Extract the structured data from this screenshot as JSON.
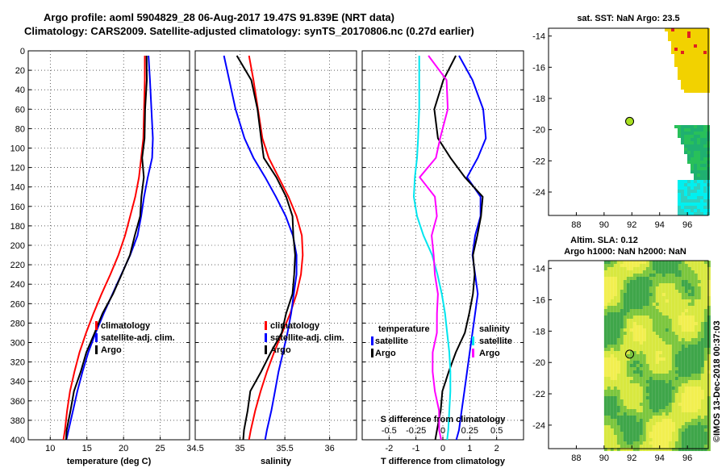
{
  "header": {
    "line1": "Argo profile: aoml 5904829_28 06-Aug-2017 19.47S 91.839E (NRT data)",
    "line2": "Climatology: CARS2009. Satellite-adjusted climatology: synTS_20170806.nc (0.27d earlier)"
  },
  "watermark": "©IMOS 13-Dec-2018 00:37:03",
  "colors": {
    "climatology": "#ff0000",
    "satellite": "#0000ff",
    "argo": "#000000",
    "magenta": "#ff00ff",
    "cyan": "#00e5ee"
  },
  "chart_data": [
    {
      "type": "line",
      "name": "temperature",
      "xlabel": "temperature (deg C)",
      "xlim": [
        7,
        29
      ],
      "ylim": [
        0,
        400
      ],
      "xticks": [
        10,
        15,
        20,
        25
      ],
      "yticks": [
        0,
        20,
        40,
        60,
        80,
        100,
        120,
        140,
        160,
        180,
        200,
        220,
        240,
        260,
        280,
        300,
        320,
        340,
        360,
        380,
        400
      ],
      "legend": [
        "climatology",
        "satellite-adj. clim.",
        "Argo"
      ],
      "series": [
        {
          "name": "climatology",
          "color": "#ff0000",
          "x": [
            22.9,
            22.9,
            22.8,
            22.7,
            22.4,
            22.1,
            21.6,
            20.9,
            20.2,
            19.3,
            18.2,
            17.0,
            15.9,
            14.9,
            14.0,
            13.3,
            12.7,
            12.3,
            12.0,
            11.8
          ],
          "depth": [
            5,
            30,
            60,
            90,
            110,
            130,
            150,
            170,
            190,
            210,
            230,
            250,
            270,
            290,
            310,
            330,
            350,
            370,
            390,
            400
          ]
        },
        {
          "name": "satellite-adj. clim.",
          "color": "#0000ff",
          "x": [
            23.4,
            23.6,
            23.8,
            24.0,
            23.9,
            23.3,
            22.8,
            22.4,
            21.9,
            20.9,
            19.7,
            18.5,
            17.3,
            16.2,
            15.2,
            14.4,
            13.7,
            13.1,
            12.5,
            12.2
          ],
          "depth": [
            5,
            30,
            60,
            90,
            110,
            130,
            150,
            170,
            190,
            210,
            230,
            250,
            270,
            290,
            310,
            330,
            350,
            370,
            390,
            400
          ]
        },
        {
          "name": "Argo",
          "color": "#000000",
          "x": [
            23.2,
            23.1,
            23.0,
            22.8,
            22.6,
            22.7,
            22.5,
            22.2,
            21.6,
            20.8,
            19.8,
            18.5,
            17.2,
            16.0,
            15.0,
            14.1,
            13.3,
            12.7,
            12.3,
            12.1
          ],
          "depth": [
            5,
            30,
            60,
            90,
            110,
            130,
            150,
            170,
            190,
            210,
            230,
            250,
            270,
            290,
            310,
            330,
            350,
            370,
            390,
            400
          ]
        }
      ]
    },
    {
      "type": "line",
      "name": "salinity",
      "xlabel": "salinity",
      "xlim": [
        34.5,
        36.3
      ],
      "ylim": [
        0,
        400
      ],
      "xticks": [
        34.5,
        35,
        35.5,
        36
      ],
      "legend": [
        "climatology",
        "satellite-adj. clim.",
        "Argo"
      ],
      "series": [
        {
          "name": "climatology",
          "color": "#ff0000",
          "x": [
            35.1,
            35.15,
            35.2,
            35.25,
            35.32,
            35.43,
            35.54,
            35.63,
            35.69,
            35.7,
            35.68,
            35.63,
            35.56,
            35.47,
            35.38,
            35.3,
            35.23,
            35.17,
            35.12,
            35.1
          ],
          "depth": [
            5,
            30,
            60,
            90,
            110,
            130,
            150,
            170,
            190,
            210,
            230,
            250,
            270,
            290,
            310,
            330,
            350,
            370,
            390,
            400
          ]
        },
        {
          "name": "satellite-adj. clim.",
          "color": "#0000ff",
          "x": [
            34.82,
            34.88,
            34.95,
            35.05,
            35.15,
            35.28,
            35.4,
            35.51,
            35.59,
            35.63,
            35.63,
            35.6,
            35.57,
            35.53,
            35.48,
            35.43,
            35.39,
            35.35,
            35.3,
            35.28
          ],
          "depth": [
            5,
            30,
            60,
            90,
            110,
            130,
            150,
            170,
            190,
            210,
            230,
            250,
            270,
            290,
            310,
            330,
            350,
            370,
            390,
            400
          ]
        },
        {
          "name": "Argo",
          "color": "#000000",
          "x": [
            34.97,
            35.12,
            35.2,
            35.23,
            35.27,
            35.4,
            35.52,
            35.58,
            35.6,
            35.61,
            35.61,
            35.58,
            35.52,
            35.46,
            35.35,
            35.23,
            35.12,
            35.08,
            35.05,
            35.03
          ],
          "depth": [
            5,
            30,
            60,
            90,
            110,
            130,
            150,
            170,
            190,
            210,
            230,
            250,
            270,
            290,
            310,
            330,
            350,
            370,
            390,
            400
          ]
        }
      ]
    },
    {
      "type": "line",
      "name": "difference",
      "xlabel": "T difference from climatology",
      "xlabel_top": "S difference from climatology",
      "xlim": [
        -3,
        3
      ],
      "ylim": [
        0,
        400
      ],
      "xticks": [
        -2,
        -1,
        0,
        1,
        2
      ],
      "xticks_top": [
        -0.5,
        -0.25,
        0,
        0.25,
        0.5
      ],
      "legend_temperature": {
        "title": "temperature",
        "items": [
          "satellite",
          "Argo"
        ]
      },
      "legend_salinity": {
        "title": "salinity",
        "items": [
          "satellite",
          "Argo"
        ]
      },
      "series": [
        {
          "name": "T satellite",
          "color": "#0000ff",
          "x": [
            0.6,
            1.1,
            1.5,
            1.6,
            1.3,
            0.9,
            1.4,
            1.4,
            1.2,
            1.1,
            1.2,
            1.3,
            1.2,
            1.1,
            1.0,
            0.9,
            0.8,
            0.7,
            0.6,
            0.5
          ],
          "depth": [
            5,
            30,
            60,
            90,
            110,
            130,
            150,
            170,
            190,
            210,
            230,
            250,
            270,
            290,
            310,
            330,
            350,
            370,
            390,
            400
          ]
        },
        {
          "name": "T Argo",
          "color": "#000000",
          "x": [
            0.5,
            0.0,
            -0.3,
            -0.2,
            0.3,
            0.8,
            1.5,
            1.4,
            1.3,
            1.1,
            1.2,
            1.1,
            1.0,
            0.8,
            0.5,
            0.2,
            0.0,
            -0.1,
            -0.2,
            -0.3
          ],
          "depth": [
            5,
            30,
            60,
            90,
            110,
            130,
            150,
            170,
            190,
            210,
            230,
            250,
            270,
            290,
            310,
            330,
            350,
            370,
            390,
            400
          ]
        },
        {
          "name": "S satellite",
          "color": "#00e5ee",
          "x": [
            -0.22,
            -0.22,
            -0.22,
            -0.23,
            -0.24,
            -0.26,
            -0.27,
            -0.24,
            -0.18,
            -0.1,
            -0.05,
            -0.01,
            0.02,
            0.04,
            0.06,
            0.07,
            0.07,
            0.06,
            0.05,
            0.04
          ],
          "depth": [
            5,
            30,
            60,
            90,
            110,
            130,
            150,
            170,
            190,
            210,
            230,
            250,
            270,
            290,
            310,
            330,
            350,
            370,
            390,
            400
          ]
        },
        {
          "name": "S Argo",
          "color": "#ff00ff",
          "x": [
            -0.13,
            0.03,
            0.05,
            -0.03,
            -0.06,
            -0.22,
            -0.07,
            -0.06,
            -0.1,
            -0.09,
            -0.07,
            -0.05,
            -0.05,
            -0.06,
            -0.09,
            -0.1,
            -0.07,
            -0.04,
            -0.03,
            -0.02
          ],
          "depth": [
            5,
            30,
            60,
            90,
            110,
            130,
            150,
            170,
            190,
            210,
            230,
            250,
            270,
            290,
            310,
            330,
            350,
            370,
            390,
            400
          ]
        }
      ]
    },
    {
      "type": "heatmap",
      "name": "sst_map",
      "title": "sat. SST: NaN Argo: 23.5",
      "xlim": [
        86,
        97.5
      ],
      "ylim": [
        -25.5,
        -13.5
      ],
      "xticks": [
        88,
        90,
        92,
        94,
        96
      ],
      "yticks": [
        -14,
        -16,
        -18,
        -20,
        -22,
        -24
      ],
      "marker": {
        "lon": 91.839,
        "lat": -19.47
      }
    },
    {
      "type": "heatmap",
      "name": "sla_map",
      "title_line1": "Altim. SLA: 0.12",
      "title_line2": "Argo h1000: NaN h2000: NaN",
      "xlim": [
        86,
        97.5
      ],
      "ylim": [
        -25.5,
        -13.5
      ],
      "xticks": [
        88,
        90,
        92,
        94,
        96
      ],
      "yticks": [
        -14,
        -16,
        -18,
        -20,
        -22,
        -24
      ],
      "marker": {
        "lon": 91.839,
        "lat": -19.47
      }
    }
  ]
}
